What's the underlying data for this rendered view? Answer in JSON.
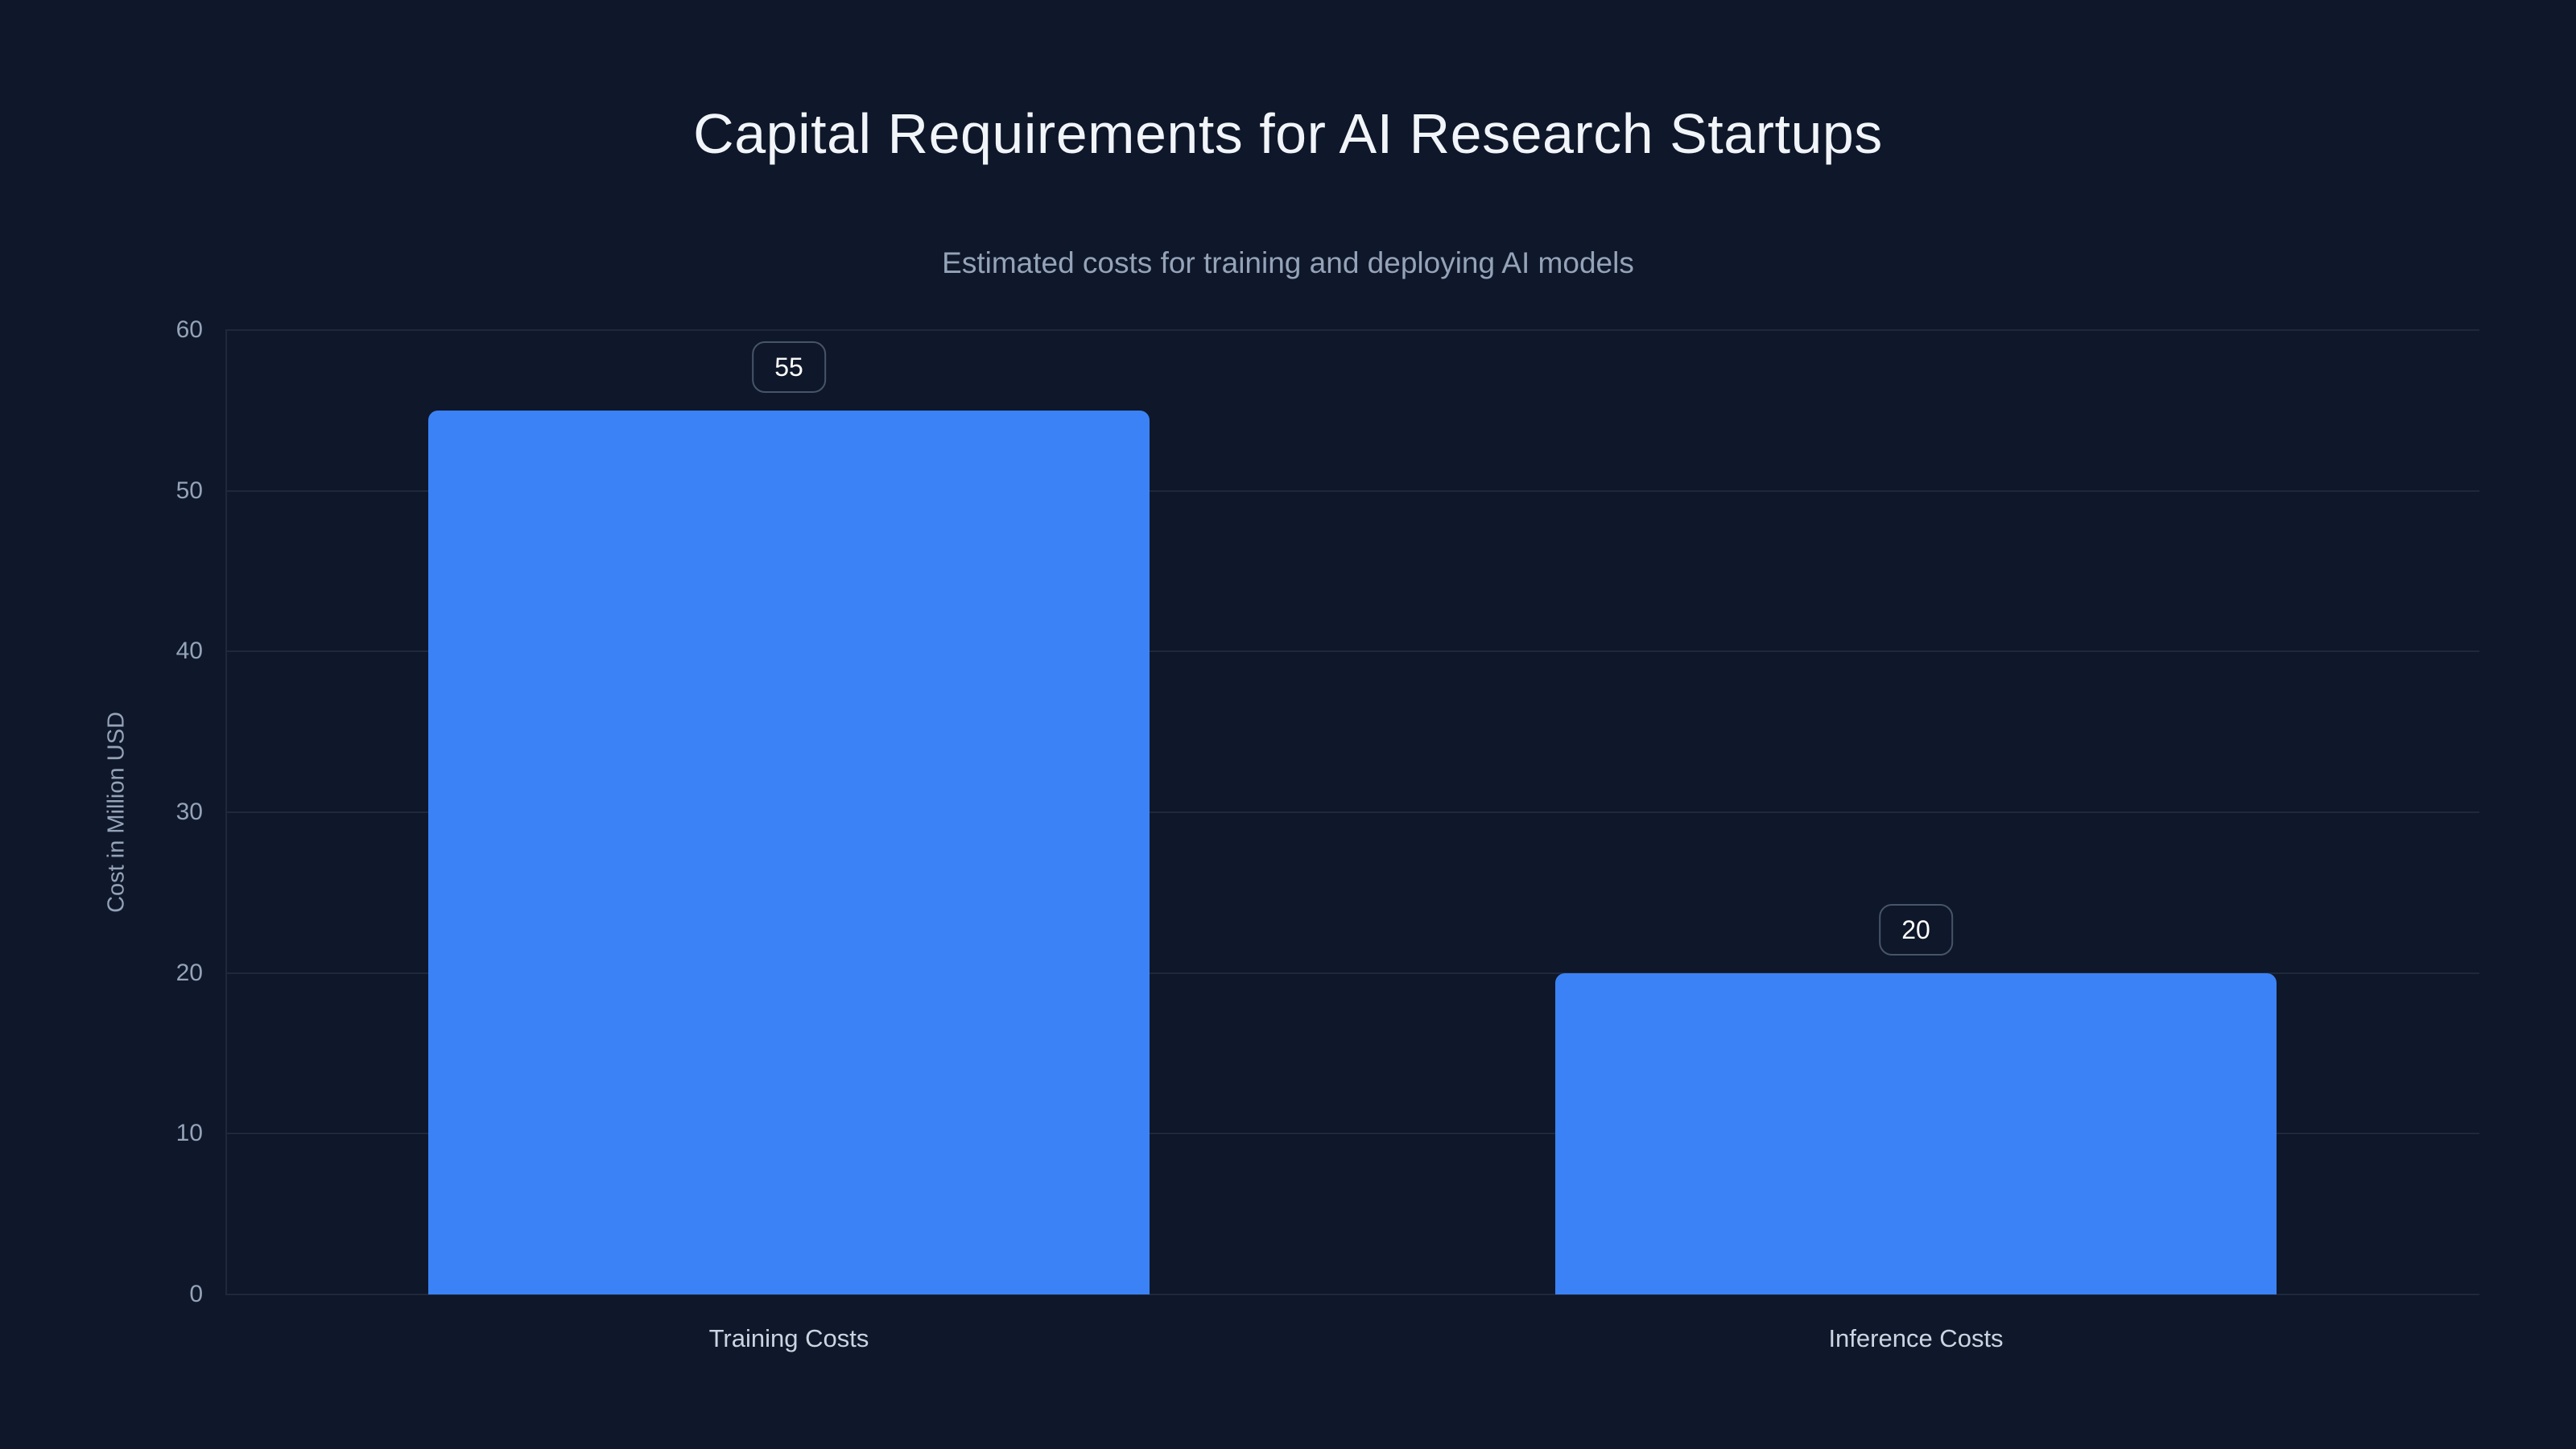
{
  "chart_data": {
    "type": "bar",
    "title": "Capital Requirements for AI Research Startups",
    "subtitle": "Estimated costs for training and deploying AI models",
    "xlabel": "",
    "ylabel": "Cost in Million USD",
    "categories": [
      "Training Costs",
      "Inference Costs"
    ],
    "values": [
      55,
      20
    ],
    "data_labels": [
      "55",
      "20"
    ],
    "y_ticks": [
      0,
      10,
      20,
      30,
      40,
      50,
      60
    ],
    "ylim": [
      0,
      60
    ],
    "grid": true,
    "legend": false,
    "legend_position": "none"
  },
  "theme": {
    "background": "#0f172a",
    "grid": "#1e293b",
    "bar": "#3b82f6",
    "title": "#f1f5f9",
    "subtitle": "#94a3b8",
    "tick": "#94a3b8",
    "category": "#cbd5e1",
    "badge_border": "#475569",
    "badge_text": "#ffffff"
  }
}
